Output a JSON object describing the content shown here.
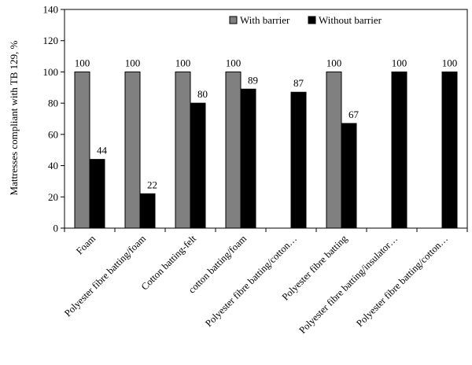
{
  "chart_data": {
    "type": "bar",
    "title": "",
    "xlabel": "",
    "ylabel": "Mattresses compliant with TB 129, %",
    "ylim": [
      0,
      140
    ],
    "yticks": [
      0,
      20,
      40,
      60,
      80,
      100,
      120,
      140
    ],
    "grid": false,
    "legend_position": "top-right",
    "categories": [
      "Foam",
      "Polyester fibre batting/foam",
      "Cotton batting-felt",
      "cotton batting/foam",
      "Polyester fibre batting/cotton…",
      "Polyester fibre batting",
      "Polyester fibre batting/insulator…",
      "Polyester fibre batting/cotton…"
    ],
    "series": [
      {
        "name": "With barrier",
        "color": "#808080",
        "values": [
          100,
          100,
          100,
          100,
          null,
          100,
          null,
          null
        ],
        "labels": [
          "100",
          "100",
          "100",
          "100",
          "",
          "100",
          "",
          ""
        ]
      },
      {
        "name": "Without barrier",
        "color": "#000000",
        "values": [
          44,
          22,
          80,
          89,
          87,
          67,
          100,
          100
        ],
        "labels": [
          "44",
          "22",
          "80",
          "89",
          "87",
          "67",
          "100",
          "100"
        ]
      }
    ]
  }
}
